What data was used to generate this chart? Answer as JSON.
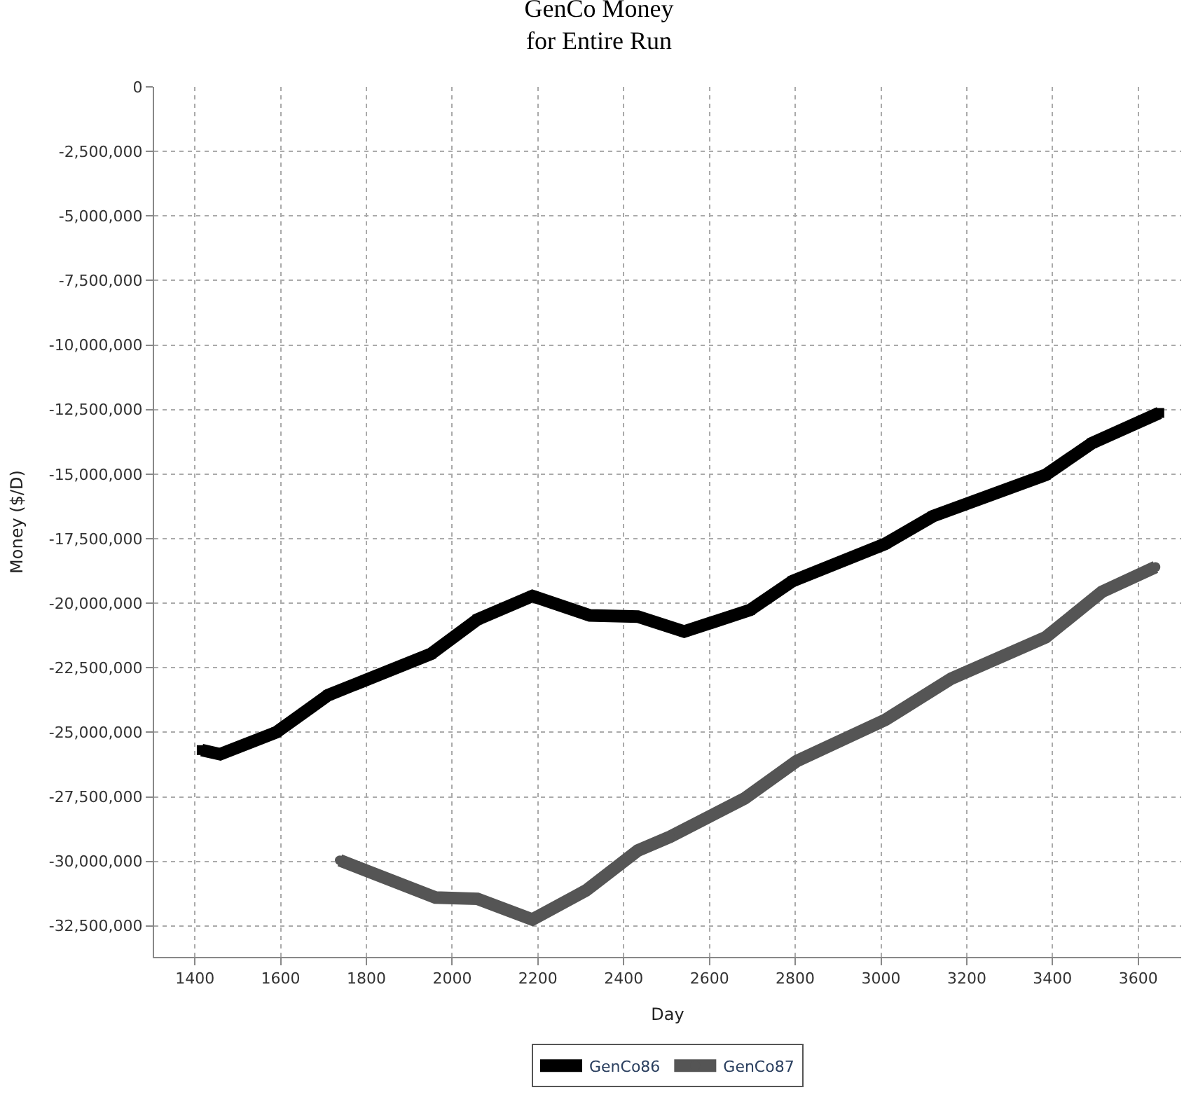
{
  "chart_data": {
    "type": "line",
    "title": "GenCo Money\nfor Entire Run",
    "xlabel": "Day",
    "ylabel": "Money ($/D)",
    "series": [
      {
        "name": "GenCo86",
        "color": "#000000",
        "marker": "square",
        "x": [
          1416,
          1459,
          1590,
          1711,
          1951,
          2059,
          2187,
          2321,
          2433,
          2541,
          2695,
          2794,
          3010,
          3121,
          3384,
          3492,
          3649
        ],
        "values": [
          -25690000,
          -25850000,
          -25000000,
          -23560000,
          -21960000,
          -20630000,
          -19720000,
          -20470000,
          -20520000,
          -21100000,
          -20260000,
          -19140000,
          -17700000,
          -16630000,
          -15030000,
          -13800000,
          -12630000
        ]
      },
      {
        "name": "GenCo87",
        "color": "#555555",
        "marker": "circle",
        "x": [
          1738,
          1961,
          2059,
          2187,
          2312,
          2433,
          2508,
          2682,
          2803,
          3010,
          3164,
          3384,
          3515,
          3640
        ],
        "values": [
          -29960000,
          -31400000,
          -31450000,
          -32250000,
          -31130000,
          -29580000,
          -29050000,
          -27560000,
          -26120000,
          -24520000,
          -22920000,
          -21320000,
          -19560000,
          -18600000
        ]
      }
    ],
    "xlim": [
      1305,
      3700
    ],
    "xticks": [
      1400,
      1600,
      1800,
      2000,
      2200,
      2400,
      2600,
      2800,
      3000,
      3200,
      3400,
      3600
    ],
    "ylim": [
      -33700000,
      0
    ],
    "yticks": [
      0,
      {
        "value": -2500000,
        "label": "-2,500,000"
      },
      {
        "value": -5000000,
        "label": "-5,000,000"
      },
      {
        "value": -7500000,
        "label": "-7,500,000"
      },
      {
        "value": -10000000,
        "label": "-10,000,000"
      },
      {
        "value": -12500000,
        "label": "-12,500,000"
      },
      {
        "value": -15000000,
        "label": "-15,000,000"
      },
      {
        "value": -17500000,
        "label": "-17,500,000"
      },
      {
        "value": -20000000,
        "label": "-20,000,000"
      },
      {
        "value": -22500000,
        "label": "-22,500,000"
      },
      {
        "value": -25000000,
        "label": "-25,000,000"
      },
      {
        "value": -27500000,
        "label": "-27,500,000"
      },
      {
        "value": -30000000,
        "label": "-30,000,000"
      },
      {
        "value": -32500000,
        "label": "-32,500,000"
      }
    ],
    "grid": true,
    "legend": "bottom",
    "line_style": "solid"
  }
}
